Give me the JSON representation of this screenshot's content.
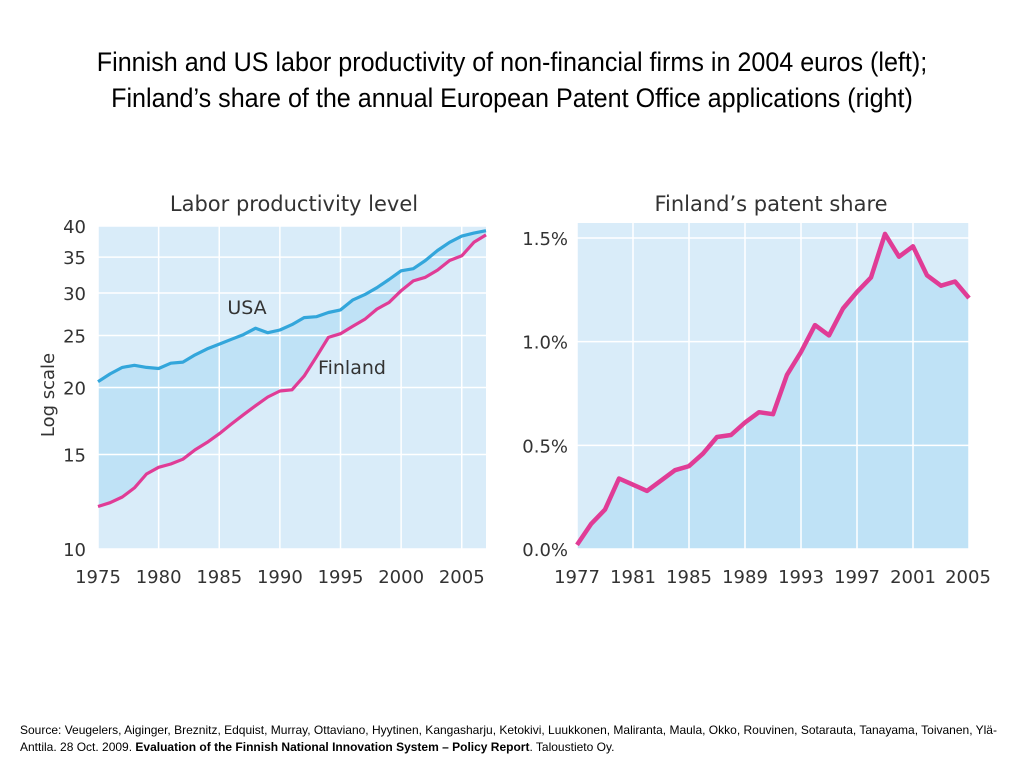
{
  "slide": {
    "title_line1": "Finnish and US labor productivity of non-financial firms in 2004 euros (left);",
    "title_line2": "Finland’s share of the annual European Patent Office applications (right)"
  },
  "source": {
    "prefix": "Source: Veugelers, Aiginger, Breznitz, Edquist, Murray, Ottaviano, Hyytinen, Kangasharju, Ketokivi, Luukkonen, Maliranta, Maula, Okko, Rouvinen, Sotarauta, Tanayama, Toivanen, Ylä-Anttila. 28 Oct. 2009. ",
    "bold": "Evaluation of the Finnish National Innovation System – Policy Report",
    "suffix": ". Taloustieto Oy."
  },
  "colors": {
    "panel_bg": "#d9ecf9",
    "fill": "#bfe2f6",
    "usa_line": "#33a6db",
    "finland_line": "#e03c96",
    "grid": "#ffffff",
    "text": "#333333"
  },
  "chart_data": [
    {
      "type": "line",
      "title": "Labor productivity level",
      "xlabel": "",
      "ylabel": "Log scale",
      "y_scale": "log",
      "xlim": [
        1975,
        2007
      ],
      "ylim": [
        10,
        40
      ],
      "x_ticks": [
        1975,
        1980,
        1985,
        1990,
        1995,
        2000,
        2005
      ],
      "y_ticks": [
        10,
        15,
        20,
        25,
        30,
        35,
        40
      ],
      "grid": true,
      "fill_between_series": true,
      "series": [
        {
          "name": "USA",
          "x": [
            1975,
            1976,
            1977,
            1978,
            1979,
            1980,
            1981,
            1982,
            1983,
            1984,
            1985,
            1986,
            1987,
            1988,
            1989,
            1990,
            1991,
            1992,
            1993,
            1994,
            1995,
            1996,
            1997,
            1998,
            1999,
            2000,
            2001,
            2002,
            2003,
            2004,
            2005,
            2006,
            2007
          ],
          "values": [
            20.5,
            21.2,
            21.8,
            22.0,
            21.8,
            21.7,
            22.2,
            22.3,
            23.0,
            23.6,
            24.1,
            24.6,
            25.1,
            25.8,
            25.3,
            25.6,
            26.2,
            27.0,
            27.1,
            27.6,
            27.9,
            29.1,
            29.8,
            30.7,
            31.8,
            33.0,
            33.3,
            34.5,
            36.0,
            37.3,
            38.3,
            38.8,
            39.2
          ]
        },
        {
          "name": "Finland",
          "x": [
            1975,
            1976,
            1977,
            1978,
            1979,
            1980,
            1981,
            1982,
            1983,
            1984,
            1985,
            1986,
            1987,
            1988,
            1989,
            1990,
            1991,
            1992,
            1993,
            1994,
            1995,
            1996,
            1997,
            1998,
            1999,
            2000,
            2001,
            2002,
            2003,
            2004,
            2005,
            2006,
            2007
          ],
          "values": [
            12.0,
            12.2,
            12.5,
            13.0,
            13.8,
            14.2,
            14.4,
            14.7,
            15.3,
            15.8,
            16.4,
            17.1,
            17.8,
            18.5,
            19.2,
            19.7,
            19.8,
            21.0,
            22.8,
            24.8,
            25.2,
            26.0,
            26.8,
            28.0,
            28.8,
            30.3,
            31.6,
            32.1,
            33.1,
            34.5,
            35.2,
            37.3,
            38.5
          ]
        }
      ],
      "annotations": [
        "USA",
        "Finland"
      ]
    },
    {
      "type": "area",
      "title": "Finland’s patent share",
      "xlabel": "",
      "ylabel": "",
      "xlim": [
        1977,
        2005
      ],
      "ylim": [
        0.0,
        1.5
      ],
      "x_ticks": [
        1977,
        1981,
        1985,
        1989,
        1993,
        1997,
        2001,
        2005
      ],
      "y_ticks": [
        "0.0%",
        "0.5%",
        "1.0%",
        "1.5%"
      ],
      "y_tick_values": [
        0.0,
        0.5,
        1.0,
        1.5
      ],
      "grid": true,
      "series": [
        {
          "name": "",
          "x": [
            1977,
            1978,
            1979,
            1980,
            1981,
            1982,
            1983,
            1984,
            1985,
            1986,
            1987,
            1988,
            1989,
            1990,
            1991,
            1992,
            1993,
            1994,
            1995,
            1996,
            1997,
            1998,
            1999,
            2000,
            2001,
            2002,
            2003,
            2004,
            2005
          ],
          "values": [
            0.02,
            0.12,
            0.19,
            0.34,
            0.31,
            0.28,
            0.33,
            0.38,
            0.4,
            0.46,
            0.54,
            0.55,
            0.61,
            0.66,
            0.65,
            0.84,
            0.95,
            1.08,
            1.03,
            1.16,
            1.24,
            1.31,
            1.52,
            1.41,
            1.46,
            1.32,
            1.27,
            1.29,
            1.21
          ]
        }
      ]
    }
  ]
}
